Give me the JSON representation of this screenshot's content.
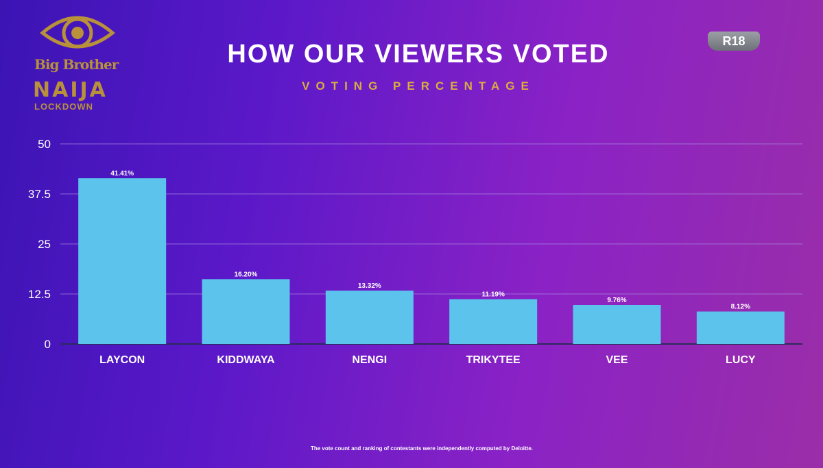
{
  "logo": {
    "line1": "Big Brother",
    "line2": "NAIJA",
    "line3": "LOCKDOWN"
  },
  "header": {
    "title": "HOW OUR VIEWERS VOTED",
    "subtitle": "VOTING PERCENTAGE"
  },
  "rating_badge": "R18",
  "footnote": "The vote count and ranking of contestants were independently computed by Deloitte.",
  "colors": {
    "bar": "#5bc3ec",
    "title": "#ffffff",
    "subtitle": "#d9ae3e",
    "gridline": "#a98be0"
  },
  "chart_data": {
    "type": "bar",
    "categories": [
      "LAYCON",
      "KIDDWAYA",
      "NENGI",
      "TRIKYTEE",
      "VEE",
      "LUCY"
    ],
    "values": [
      41.41,
      16.2,
      13.32,
      11.19,
      9.76,
      8.12
    ],
    "data_labels": [
      "41.41%",
      "16.20%",
      "13.32%",
      "11.19%",
      "9.76%",
      "8.12%"
    ],
    "yticks": [
      "50",
      "37.5",
      "25",
      "12.5",
      "0"
    ],
    "ytick_values": [
      50,
      37.5,
      25,
      12.5,
      0
    ],
    "ylim": [
      0,
      50
    ],
    "grid": true,
    "legend": "none"
  }
}
